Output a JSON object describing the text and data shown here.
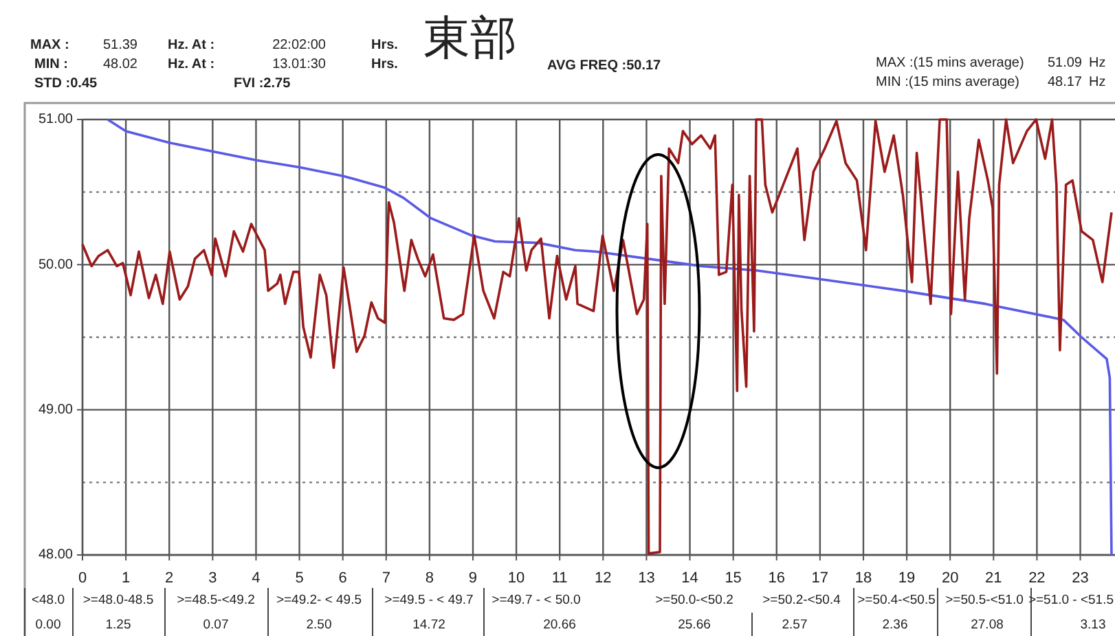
{
  "chart_data": {
    "type": "line",
    "title": "東部",
    "xlim": [
      0,
      23.8
    ],
    "xticks": [
      0,
      1,
      2,
      3,
      4,
      5,
      6,
      7,
      8,
      9,
      10,
      11,
      12,
      13,
      14,
      15,
      16,
      17,
      18,
      19,
      20,
      21,
      22,
      23
    ],
    "ylim": [
      48,
      51
    ],
    "yticks": [
      {
        "value": 48,
        "label": "48.00"
      },
      {
        "value": 49,
        "label": "49.00"
      },
      {
        "value": 50,
        "label": "50.00"
      },
      {
        "value": 51,
        "label": "51.00"
      }
    ],
    "grid": true,
    "line_style": "solid",
    "ref_lines": [
      {
        "axis": "y",
        "value": 48.5,
        "color": "#777777",
        "line_style": "dotted"
      },
      {
        "axis": "y",
        "value": 49.5,
        "color": "#777777",
        "line_style": "dotted"
      },
      {
        "axis": "y",
        "value": 50.5,
        "color": "#777777",
        "line_style": "dotted"
      }
    ],
    "series": [
      {
        "color": "#9b1b1b",
        "x": [
          0,
          0.21,
          0.37,
          0.58,
          0.79,
          0.93,
          1.11,
          1.3,
          1.53,
          1.69,
          1.85,
          2.01,
          2.24,
          2.43,
          2.59,
          2.8,
          2.98,
          3.06,
          3.3,
          3.49,
          3.7,
          3.89,
          4.01,
          4.2,
          4.28,
          4.49,
          4.56,
          4.67,
          4.86,
          4.99,
          5.09,
          5.26,
          5.47,
          5.62,
          5.79,
          6.02,
          6.32,
          6.5,
          6.66,
          6.81,
          6.97,
          7.06,
          7.18,
          7.42,
          7.58,
          7.73,
          7.9,
          8.08,
          8.33,
          8.56,
          8.77,
          9.03,
          9.24,
          9.49,
          9.7,
          9.85,
          10.06,
          10.23,
          10.35,
          10.57,
          10.76,
          10.94,
          11.15,
          11.36,
          11.41,
          11.78,
          11.99,
          12.25,
          12.46,
          12.78,
          12.94,
          13.02,
          13.05,
          13.31,
          13.34,
          13.42,
          13.52,
          13.73,
          13.84,
          14.05,
          14.26,
          14.47,
          14.58,
          14.67,
          14.84,
          14.98,
          15.09,
          15.13,
          15.19,
          15.3,
          15.38,
          15.48,
          15.53,
          15.66,
          15.74,
          15.9,
          16.06,
          16.27,
          16.48,
          16.64,
          16.85,
          17.11,
          17.38,
          17.59,
          17.85,
          18.06,
          18.28,
          18.49,
          18.7,
          18.91,
          19.12,
          19.23,
          19.55,
          19.76,
          19.92,
          20.02,
          20.18,
          20.34,
          20.44,
          20.66,
          20.87,
          20.98,
          21.08,
          21.13,
          21.29,
          21.45,
          21.77,
          21.98,
          22.19,
          22.35,
          22.45,
          22.53,
          22.67,
          22.82,
          23.03,
          23.29,
          23.51,
          23.72
        ],
        "values": [
          50.14,
          49.99,
          50.06,
          50.1,
          49.99,
          50.01,
          49.79,
          50.09,
          49.77,
          49.93,
          49.73,
          50.09,
          49.76,
          49.85,
          50.04,
          50.1,
          49.93,
          50.18,
          49.92,
          50.23,
          50.09,
          50.28,
          50.21,
          50.1,
          49.82,
          49.87,
          49.93,
          49.73,
          49.95,
          49.95,
          49.57,
          49.36,
          49.93,
          49.79,
          49.29,
          49.98,
          49.4,
          49.51,
          49.74,
          49.63,
          49.6,
          50.43,
          50.29,
          49.82,
          50.17,
          50.04,
          49.92,
          50.07,
          49.63,
          49.62,
          49.66,
          50.2,
          49.82,
          49.63,
          49.95,
          49.92,
          50.32,
          49.96,
          50.1,
          50.18,
          49.63,
          50.06,
          49.76,
          49.99,
          49.73,
          49.68,
          50.2,
          49.82,
          50.17,
          49.66,
          49.76,
          50.28,
          48.01,
          48.02,
          50.61,
          49.73,
          50.8,
          50.7,
          50.92,
          50.83,
          50.89,
          50.8,
          50.89,
          49.93,
          49.95,
          50.55,
          49.13,
          50.48,
          49.69,
          49.16,
          50.61,
          49.54,
          51.0,
          51.0,
          50.55,
          50.36,
          50.48,
          50.64,
          50.8,
          50.17,
          50.64,
          50.8,
          50.99,
          50.7,
          50.58,
          50.1,
          50.99,
          50.64,
          50.89,
          50.48,
          49.88,
          50.77,
          49.73,
          51.0,
          51.0,
          49.66,
          50.64,
          49.76,
          50.32,
          50.86,
          50.58,
          50.39,
          49.25,
          50.55,
          51.0,
          50.7,
          50.92,
          51.0,
          50.73,
          51.0,
          50.55,
          49.41,
          50.55,
          50.58,
          50.23,
          50.17,
          49.88,
          50.36
        ]
      },
      {
        "color": "#5a5ae6",
        "x": [
          0.58,
          1.0,
          2.0,
          3.0,
          4.01,
          5.02,
          6.02,
          6.97,
          7.4,
          8.03,
          8.98,
          9.51,
          10.51,
          11.36,
          11.83,
          13.05,
          14.26,
          15.53,
          17.01,
          18.91,
          20.81,
          22.61,
          23.03,
          23.61,
          23.68,
          23.72
        ],
        "values": [
          51.0,
          50.92,
          50.84,
          50.78,
          50.72,
          50.67,
          50.61,
          50.53,
          50.46,
          50.32,
          50.2,
          50.16,
          50.15,
          50.1,
          50.09,
          50.04,
          49.99,
          49.96,
          49.9,
          49.82,
          49.73,
          49.62,
          49.5,
          49.35,
          49.22,
          48.0
        ]
      }
    ],
    "annotations": [
      "MAX :",
      "51.39",
      "Hz. At :",
      "22:02:00",
      "Hrs.",
      "MIN :",
      "48.02",
      "Hz. At :",
      "13.01:30",
      "Hrs.",
      "STD :0.45",
      "FVI :2.75",
      "AVG FREQ :50.17",
      "MAX :(15 mins average)",
      "51.09",
      "Hz",
      "MIN :(15 mins average)",
      "48.17",
      "Hz",
      "<48.0",
      "0.00",
      ">=48.0-48.5",
      "1.25",
      ">=48.5-<49.2",
      "0.07",
      ">=49.2- < 49.5",
      "2.50",
      ">=49.5 - < 49.7",
      "14.72",
      ">=49.7 - < 50.0",
      "20.66",
      ">=50.0-<50.2",
      "25.66",
      ">=50.2-<50.4",
      "2.57",
      ">=50.4-<50.5",
      "2.36",
      ">=50.5-<51.0",
      "27.08",
      ">=51.0 - <51.5",
      "3.13"
    ]
  }
}
